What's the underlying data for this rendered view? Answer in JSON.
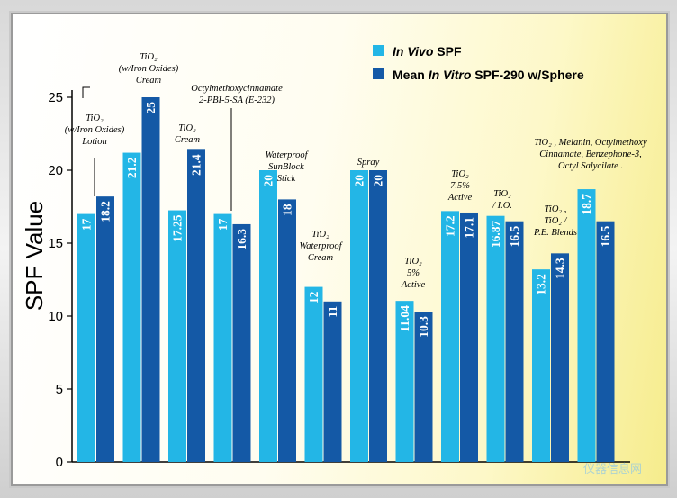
{
  "chart_data": {
    "type": "bar",
    "ylabel": "SPF Value",
    "ylim": [
      0,
      25
    ],
    "yticks": [
      0,
      5,
      10,
      15,
      20,
      25
    ],
    "grid": false,
    "legend_position": "top-right",
    "colors": {
      "in_vivo": "#23b6e6",
      "in_vitro": "#1459a6"
    },
    "series": [
      {
        "name": "In Vivo SPF",
        "legend_parts": [
          [
            "In Vivo",
            true
          ],
          [
            " SPF",
            false
          ]
        ],
        "values": [
          17,
          21.2,
          17.25,
          17,
          20,
          12,
          20,
          11.04,
          17.2,
          16.87,
          13.2,
          18.7
        ],
        "labels": [
          "17",
          "21.2",
          "17.25",
          "17",
          "20",
          "12",
          "20",
          "11.04",
          "17.2",
          "16.87",
          "13.2",
          "18.7"
        ]
      },
      {
        "name": "Mean In Vitro SPF-290 w/Sphere",
        "legend_parts": [
          [
            "Mean ",
            false
          ],
          [
            "In Vitro",
            true
          ],
          [
            " SPF-290 w/Sphere",
            false
          ]
        ],
        "values": [
          18.2,
          25,
          21.4,
          16.3,
          18,
          11,
          20,
          10.3,
          17.1,
          16.5,
          14.3,
          16.5
        ],
        "labels": [
          "18.2",
          "25",
          "21.4",
          "16.3",
          "18",
          "11",
          "20",
          "10.3",
          "17.1",
          "16.5",
          "14.3",
          "16.5"
        ]
      }
    ],
    "categories": [
      [
        "TiO₂",
        "(w/Iron Oxides)",
        "Lotion"
      ],
      [
        "TiO₂",
        "(w/Iron Oxides)",
        "Cream"
      ],
      [
        "TiO₂",
        "Cream"
      ],
      [
        "Octylmethoxycinnamate",
        "2-PBI-5-SA (E-232)"
      ],
      [
        "Waterproof",
        "SunBlock",
        "Stick"
      ],
      [
        "TiO₂",
        "Waterproof",
        "Cream"
      ],
      [
        "Spray"
      ],
      [
        "TiO₂",
        "5%",
        "Active"
      ],
      [
        "TiO₂",
        "7.5%",
        "Active"
      ],
      [
        "TiO₂",
        "/ I.O."
      ],
      [
        "TiO₂ ,",
        "TiO₂ /",
        "P.E. Blends"
      ],
      [
        "TiO₂ , Melanin, Octylmethoxy",
        "Cinnamate, Benzephone-3,",
        "Octyl Salycilate ."
      ]
    ]
  },
  "watermark": "仪器信息网"
}
